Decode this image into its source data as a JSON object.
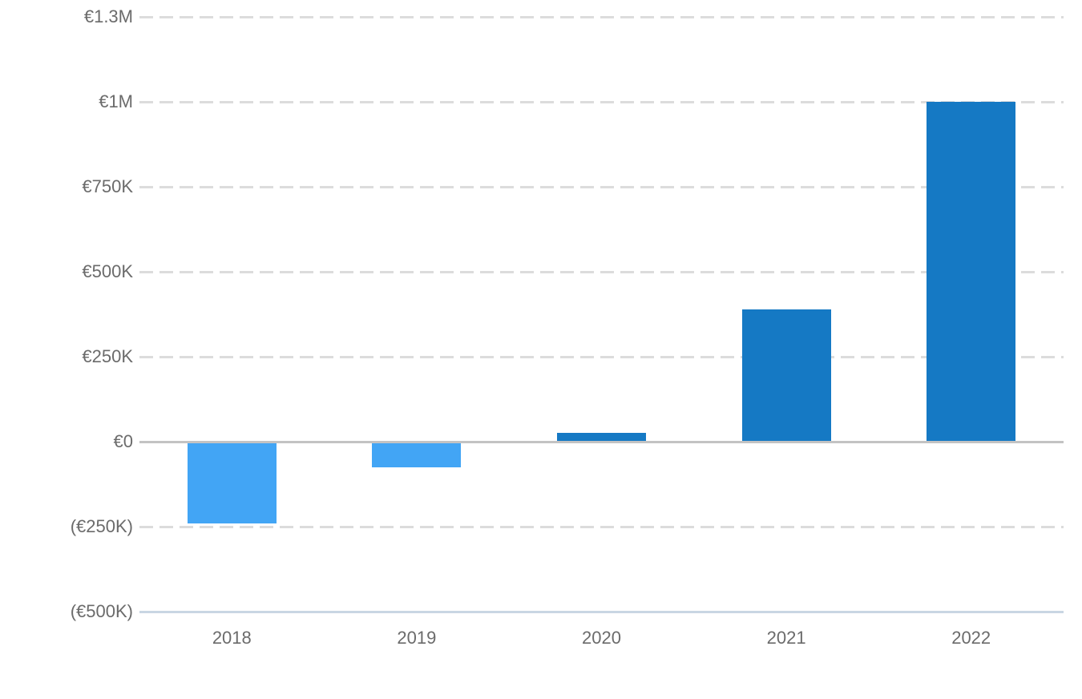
{
  "chart_data": {
    "type": "bar",
    "title": "",
    "xlabel": "",
    "ylabel": "",
    "currency": "EUR",
    "categories": [
      "2018",
      "2019",
      "2020",
      "2021",
      "2022"
    ],
    "values": [
      -240000,
      -75000,
      25000,
      390000,
      1000000
    ],
    "ylim": [
      -500000,
      1250000
    ],
    "y_ticks": [
      {
        "value": 1250000,
        "label": "€1.3M"
      },
      {
        "value": 1000000,
        "label": "€1M"
      },
      {
        "value": 750000,
        "label": "€750K"
      },
      {
        "value": 500000,
        "label": "€500K"
      },
      {
        "value": 250000,
        "label": "€250K"
      },
      {
        "value": 0,
        "label": "€0"
      },
      {
        "value": -250000,
        "label": "(€250K)"
      },
      {
        "value": -500000,
        "label": "(€500K)"
      }
    ],
    "grid": "horizontal-dashed",
    "legend": "none",
    "colors": {
      "positive_bar": "#1579c4",
      "negative_bar": "#42a5f5",
      "gridline": "#dcdcdc",
      "zero_line": "#c3c3c3",
      "bottom_axis_line": "#c9d6e3",
      "tick_label": "#6b6b6b",
      "background": "#ffffff"
    }
  }
}
